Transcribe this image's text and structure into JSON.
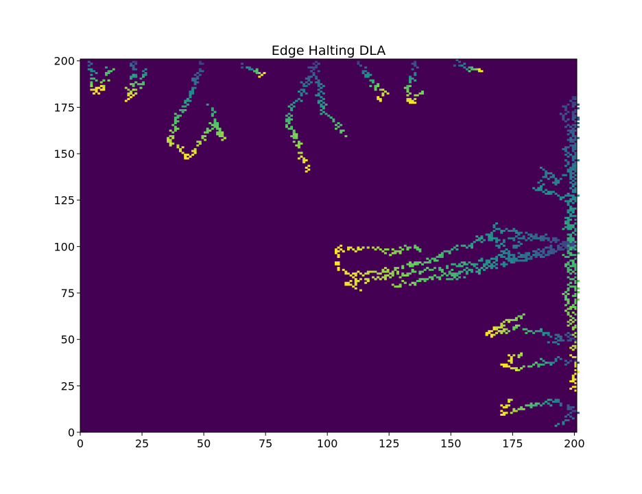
{
  "chart_data": {
    "type": "heatmap",
    "title": "Edge Halting DLA",
    "xlabel": "",
    "ylabel": "",
    "xlim": [
      0,
      201
    ],
    "ylim": [
      0,
      201
    ],
    "xticks": [
      0,
      25,
      50,
      75,
      100,
      125,
      150,
      175,
      200
    ],
    "yticks": [
      0,
      25,
      50,
      75,
      100,
      125,
      150,
      175,
      200
    ],
    "colormap": "viridis",
    "background_color": "#440154",
    "grid": false,
    "legend": "none",
    "clusters": [
      {
        "name": "",
        "points": [
          [
            3,
            199
          ],
          [
            5,
            192
          ],
          [
            4,
            186
          ],
          [
            6,
            183
          ],
          [
            9,
            185
          ],
          [
            11,
            196
          ]
        ]
      },
      {
        "name": "",
        "points": [
          [
            22,
            199
          ],
          [
            21,
            190
          ],
          [
            20,
            184
          ],
          [
            19,
            180
          ],
          [
            24,
            186
          ],
          [
            26,
            194
          ]
        ]
      },
      {
        "name": "",
        "points": [
          [
            48,
            199
          ],
          [
            47,
            190
          ],
          [
            45,
            182
          ],
          [
            42,
            176
          ],
          [
            38,
            166
          ],
          [
            36,
            156
          ],
          [
            43,
            147
          ],
          [
            50,
            160
          ],
          [
            54,
            166
          ],
          [
            57,
            158
          ],
          [
            52,
            175
          ]
        ]
      },
      {
        "name": "",
        "points": [
          [
            65,
            197
          ],
          [
            70,
            194
          ],
          [
            74,
            192
          ]
        ]
      },
      {
        "name": "",
        "points": [
          [
            94,
            199
          ],
          [
            92,
            190
          ],
          [
            90,
            183
          ],
          [
            86,
            176
          ],
          [
            83,
            168
          ],
          [
            86,
            160
          ],
          [
            88,
            152
          ],
          [
            90,
            146
          ],
          [
            92,
            141
          ],
          [
            98,
            172
          ],
          [
            104,
            166
          ],
          [
            106,
            160
          ]
        ]
      },
      {
        "name": "",
        "points": [
          [
            112,
            199
          ],
          [
            116,
            192
          ],
          [
            118,
            186
          ],
          [
            122,
            183
          ],
          [
            120,
            178
          ]
        ]
      },
      {
        "name": "",
        "points": [
          [
            136,
            199
          ],
          [
            133,
            190
          ],
          [
            132,
            184
          ],
          [
            133,
            177
          ],
          [
            138,
            183
          ]
        ]
      },
      {
        "name": "",
        "points": [
          [
            152,
            198
          ],
          [
            158,
            196
          ],
          [
            162,
            194
          ]
        ]
      },
      {
        "name": "",
        "points": [
          [
            200,
            100
          ],
          [
            194,
            102
          ],
          [
            185,
            104
          ],
          [
            176,
            104
          ],
          [
            170,
            102
          ],
          [
            162,
            104
          ],
          [
            157,
            100
          ],
          [
            150,
            98
          ],
          [
            145,
            94
          ],
          [
            140,
            91
          ],
          [
            134,
            90
          ],
          [
            128,
            88
          ],
          [
            122,
            86
          ],
          [
            116,
            85
          ],
          [
            110,
            84
          ],
          [
            104,
            88
          ],
          [
            103,
            98
          ],
          [
            120,
            99
          ],
          [
            125,
            96
          ],
          [
            132,
            99
          ],
          [
            138,
            98
          ],
          [
            126,
            78
          ],
          [
            108,
            80
          ],
          [
            112,
            76
          ],
          [
            148,
            82
          ],
          [
            168,
            110
          ],
          [
            164,
            106
          ],
          [
            172,
            96
          ],
          [
            178,
            102
          ]
        ]
      },
      {
        "name": "",
        "points": [
          [
            200,
            50
          ],
          [
            192,
            52
          ],
          [
            184,
            54
          ],
          [
            176,
            56
          ],
          [
            170,
            54
          ],
          [
            164,
            52
          ],
          [
            172,
            60
          ],
          [
            178,
            62
          ],
          [
            190,
            48
          ]
        ]
      },
      {
        "name": "",
        "points": [
          [
            200,
            38
          ],
          [
            192,
            38
          ],
          [
            184,
            36
          ],
          [
            176,
            34
          ],
          [
            172,
            36
          ],
          [
            178,
            42
          ]
        ]
      },
      {
        "name": "",
        "points": [
          [
            200,
            12
          ],
          [
            192,
            16
          ],
          [
            184,
            14
          ],
          [
            176,
            12
          ],
          [
            170,
            10
          ],
          [
            174,
            18
          ],
          [
            194,
            4
          ]
        ]
      },
      {
        "name": "",
        "points": [
          [
            200,
            180
          ],
          [
            195,
            170
          ],
          [
            198,
            160
          ],
          [
            196,
            150
          ],
          [
            198,
            140
          ],
          [
            192,
            134
          ],
          [
            188,
            140
          ],
          [
            185,
            130
          ],
          [
            196,
            126
          ],
          [
            198,
            118
          ],
          [
            196,
            110
          ],
          [
            197,
            90
          ],
          [
            198,
            80
          ],
          [
            196,
            72
          ],
          [
            198,
            66
          ],
          [
            197,
            58
          ],
          [
            200,
            28
          ],
          [
            199,
            22
          ]
        ]
      }
    ]
  }
}
